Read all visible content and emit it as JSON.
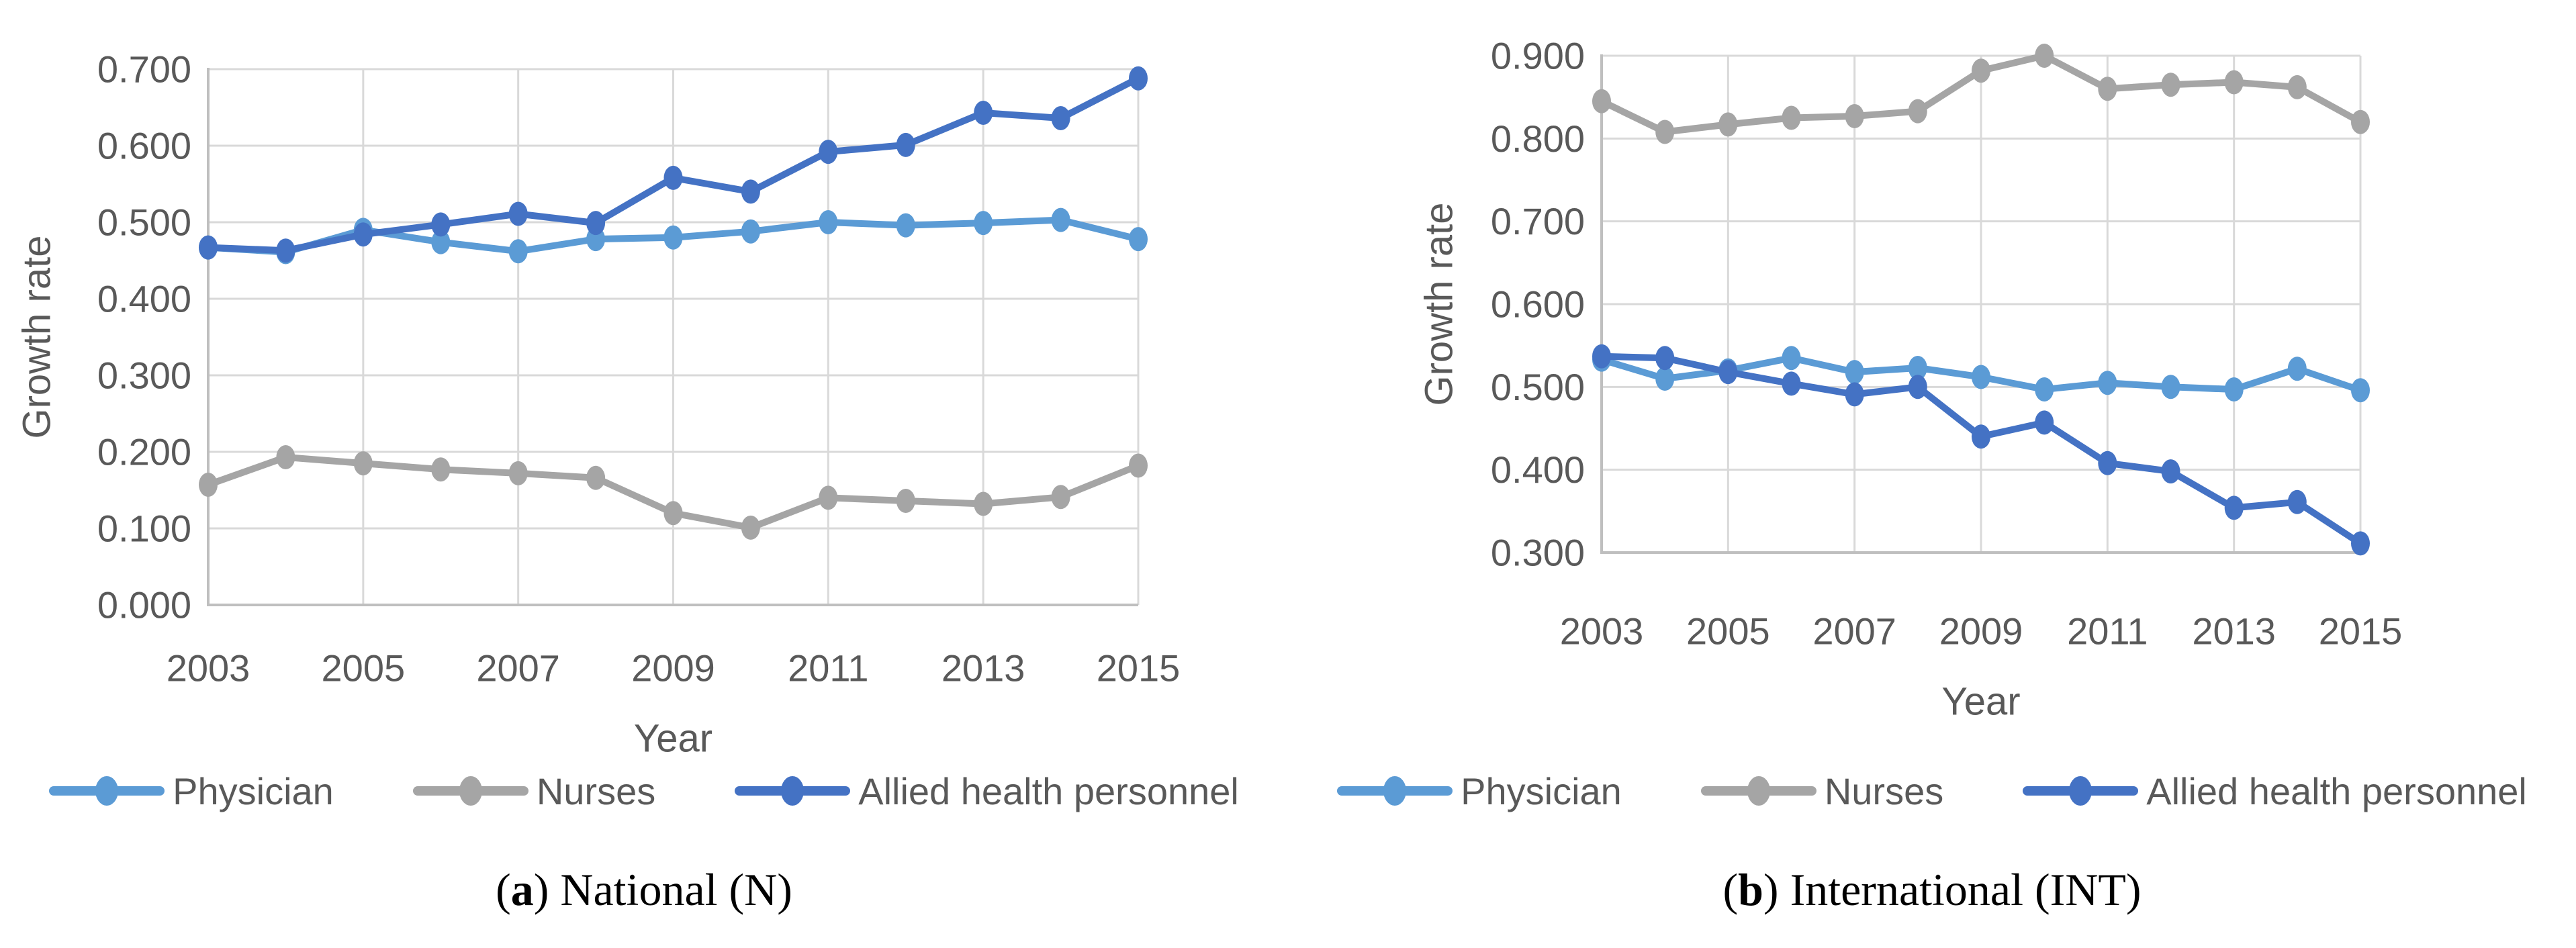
{
  "colors": {
    "physician": "#5B9BD5",
    "nurses": "#A5A5A5",
    "allied_health_personnel": "#4472C4",
    "gridline": "#D9D9D9",
    "axis_line": "#BFBFBF",
    "tick_text": "#595959",
    "caption_text": "#000000"
  },
  "chart_data": [
    {
      "id": "national",
      "type": "line",
      "caption": {
        "prefix": "(",
        "letter": "a",
        "suffix": ") ",
        "label": "National (N)"
      },
      "xlabel": "Year",
      "ylabel": "Growth rate",
      "x": [
        2003,
        2004,
        2005,
        2006,
        2007,
        2008,
        2009,
        2010,
        2011,
        2012,
        2013,
        2014,
        2015
      ],
      "x_ticks": [
        "2003",
        "2005",
        "2007",
        "2009",
        "2011",
        "2013",
        "2015"
      ],
      "ylim": [
        0.0,
        0.7
      ],
      "y_ticks": [
        "0.000",
        "0.100",
        "0.200",
        "0.300",
        "0.400",
        "0.500",
        "0.600",
        "0.700"
      ],
      "grid": true,
      "legend_position": "bottom",
      "series": [
        {
          "name": "Physician",
          "color_key": "physician",
          "values": [
            0.467,
            0.461,
            0.49,
            0.474,
            0.462,
            0.478,
            0.48,
            0.488,
            0.5,
            0.496,
            0.499,
            0.503,
            0.478
          ]
        },
        {
          "name": "Nurses",
          "color_key": "nurses",
          "values": [
            0.157,
            0.193,
            0.185,
            0.177,
            0.172,
            0.166,
            0.12,
            0.101,
            0.14,
            0.136,
            0.132,
            0.141,
            0.182
          ]
        },
        {
          "name": "Allied health personnel",
          "color_key": "allied_health_personnel",
          "values": [
            0.467,
            0.463,
            0.484,
            0.497,
            0.511,
            0.499,
            0.558,
            0.54,
            0.592,
            0.601,
            0.643,
            0.636,
            0.688
          ]
        }
      ]
    },
    {
      "id": "international",
      "type": "line",
      "caption": {
        "prefix": "(",
        "letter": "b",
        "suffix": ") ",
        "label": "International (INT)"
      },
      "xlabel": "Year",
      "ylabel": "Growth rate",
      "x": [
        2003,
        2004,
        2005,
        2006,
        2007,
        2008,
        2009,
        2010,
        2011,
        2012,
        2013,
        2014,
        2015
      ],
      "x_ticks": [
        "2003",
        "2005",
        "2007",
        "2009",
        "2011",
        "2013",
        "2015"
      ],
      "ylim": [
        0.3,
        0.9
      ],
      "y_ticks": [
        "0.300",
        "0.400",
        "0.500",
        "0.600",
        "0.700",
        "0.800",
        "0.900"
      ],
      "grid": true,
      "legend_position": "bottom",
      "series": [
        {
          "name": "Physician",
          "color_key": "physician",
          "values": [
            0.533,
            0.51,
            0.52,
            0.535,
            0.518,
            0.523,
            0.512,
            0.497,
            0.505,
            0.5,
            0.497,
            0.522,
            0.496
          ]
        },
        {
          "name": "Nurses",
          "color_key": "nurses",
          "values": [
            0.845,
            0.808,
            0.817,
            0.825,
            0.827,
            0.833,
            0.882,
            0.9,
            0.86,
            0.865,
            0.868,
            0.862,
            0.82
          ]
        },
        {
          "name": "Allied health personnel",
          "color_key": "allied_health_personnel",
          "values": [
            0.537,
            0.535,
            0.518,
            0.504,
            0.491,
            0.5,
            0.44,
            0.457,
            0.408,
            0.398,
            0.354,
            0.361,
            0.311
          ]
        }
      ]
    }
  ]
}
